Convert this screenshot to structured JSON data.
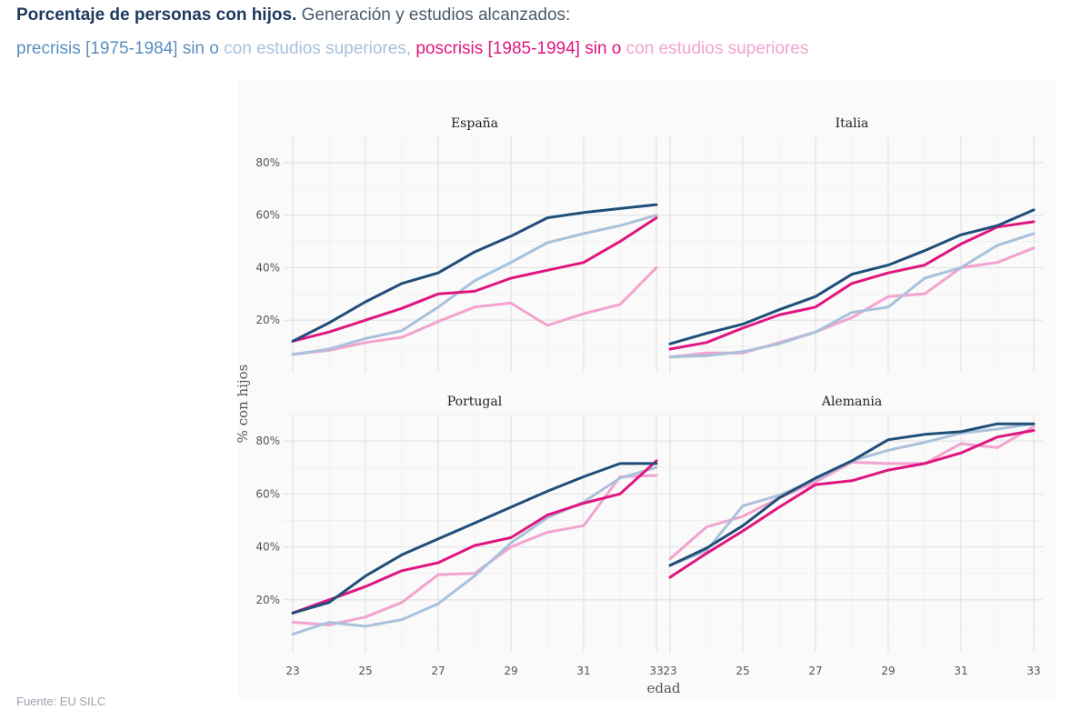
{
  "header": {
    "title_bold": "Porcentaje de personas con hijos.",
    "title_rest": " Generación y estudios alcanzados:"
  },
  "legend_line": {
    "items": [
      {
        "text": "precrisis [1975-1984] sin o",
        "color": "#5a8fc0"
      },
      {
        "text": " con estudios superiores, ",
        "color": "#a9c1da"
      },
      {
        "text": "poscrisis [1985-1994] sin o",
        "color": "#e0157f"
      },
      {
        "text": " con estudios superiores",
        "color": "#f2a3cf"
      }
    ]
  },
  "source": "Fuente: EU SILC",
  "chart_data": {
    "type": "line",
    "facets": [
      "España",
      "Italia",
      "Portugal",
      "Alemania"
    ],
    "xlabel": "edad",
    "ylabel": "% con hijos",
    "xlim": [
      23,
      33
    ],
    "ylim": [
      0,
      90
    ],
    "x_ticks": [
      "23",
      "25",
      "27",
      "29",
      "31",
      "33"
    ],
    "y_ticks": [
      "20%",
      "40%",
      "60%",
      "80%"
    ],
    "x": [
      23,
      24,
      25,
      26,
      27,
      28,
      29,
      30,
      31,
      32,
      33
    ],
    "series": [
      {
        "name": "precrisis [1975-1984] sin estudios superiores",
        "color": "#1f4e79"
      },
      {
        "name": "precrisis [1975-1984] con estudios superiores",
        "color": "#a9c1da"
      },
      {
        "name": "poscrisis [1985-1994] sin estudios superiores",
        "color": "#e0157f"
      },
      {
        "name": "poscrisis [1985-1994] con estudios superiores",
        "color": "#f2a3cf"
      }
    ],
    "data": {
      "España": [
        [
          12,
          19,
          27,
          34,
          38,
          46,
          52,
          59,
          61,
          62.5,
          64
        ],
        [
          7,
          9,
          13,
          16,
          25,
          35,
          42,
          49.5,
          53,
          56,
          60
        ],
        [
          12,
          15.5,
          20,
          24.5,
          30,
          31,
          36,
          39,
          42,
          50,
          59
        ],
        [
          7,
          8.5,
          11.5,
          13.5,
          19.5,
          25,
          26.5,
          18,
          22.5,
          26,
          40
        ]
      ],
      "Italia": [
        [
          11,
          15,
          18.5,
          24,
          29,
          37.5,
          41,
          46.5,
          52.5,
          56,
          62
        ],
        [
          6,
          6.5,
          8,
          11,
          15.5,
          23,
          25,
          36,
          40,
          48.5,
          53
        ],
        [
          9,
          11.5,
          17,
          22,
          25,
          34,
          38,
          41,
          49,
          55.5,
          57.5
        ],
        [
          6,
          7.5,
          7.5,
          11.5,
          15.5,
          21,
          29,
          30,
          40,
          42,
          47.5
        ]
      ],
      "Portugal": [
        [
          15,
          19,
          29,
          37,
          43,
          49,
          55,
          61,
          66.5,
          71.5,
          71.5
        ],
        [
          7,
          11.5,
          10,
          12.5,
          18.5,
          29,
          41.5,
          51,
          57,
          66,
          70
        ],
        [
          15,
          20,
          25,
          31,
          34,
          40.5,
          43.5,
          52,
          56.5,
          60,
          72.5
        ],
        [
          11.5,
          10.5,
          13.5,
          19,
          29.5,
          30,
          40,
          45.5,
          48,
          66.5,
          67
        ]
      ],
      "Alemania": [
        [
          33,
          39.5,
          48,
          58.5,
          66,
          72.5,
          80.5,
          82.5,
          83.5,
          86.5,
          86.5
        ],
        [
          33,
          38.5,
          55.5,
          59.5,
          65.5,
          72.5,
          76.5,
          79.5,
          83,
          84.5,
          86.5
        ],
        [
          28.5,
          37.5,
          46,
          55,
          63.5,
          65,
          69,
          71.5,
          75.5,
          81.5,
          84
        ],
        [
          35.5,
          47.5,
          51.5,
          58.5,
          64.5,
          72,
          71.5,
          71.5,
          79,
          77.5,
          85.5
        ]
      ]
    }
  }
}
